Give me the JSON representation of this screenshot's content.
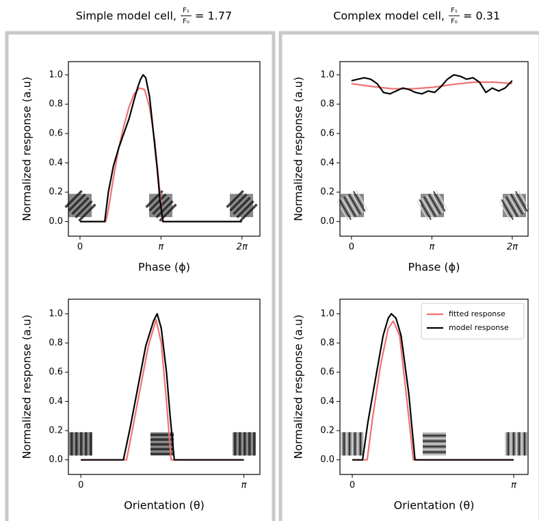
{
  "chart_data": [
    {
      "type": "line",
      "title": "Simple model cell,",
      "numerator": "F₁",
      "denominator": "F₀",
      "ratio": 1.77,
      "ratio_label": "= 1.77",
      "xlabel": "Phase (ϕ)",
      "ylabel": "Normalized response (a.u)",
      "xlim": [
        -0.45,
        6.98
      ],
      "ylim": [
        -0.1,
        1.09
      ],
      "xticks": [
        0,
        {
          "value": 3.1416,
          "label": "π"
        },
        {
          "value": 6.2832,
          "label": "2π"
        }
      ],
      "yticks": [
        {
          "value": 0,
          "label": "0.0"
        },
        {
          "value": 0.2,
          "label": "0.2"
        },
        {
          "value": 0.4,
          "label": "0.4"
        },
        {
          "value": 0.6,
          "label": "0.6"
        },
        {
          "value": 0.8,
          "label": "0.8"
        },
        {
          "value": 1,
          "label": "1.0"
        }
      ],
      "series": [
        {
          "color": "#f07070",
          "x": [
            0,
            1.0,
            1.1,
            1.3,
            1.5,
            1.7,
            1.9,
            2.1,
            2.3,
            2.5,
            2.7,
            2.9,
            3.1,
            3.2,
            6.28
          ],
          "values": [
            0,
            0,
            0.08,
            0.3,
            0.5,
            0.65,
            0.78,
            0.87,
            0.91,
            0.9,
            0.78,
            0.55,
            0.2,
            0,
            0
          ]
        },
        {
          "color": "#000000",
          "x": [
            0,
            0.96,
            1.1,
            1.3,
            1.5,
            1.7,
            1.9,
            2.1,
            2.25,
            2.35,
            2.45,
            2.55,
            2.7,
            2.85,
            3.0,
            3.1,
            3.22,
            4,
            5,
            6.28
          ],
          "values": [
            0,
            0,
            0.2,
            0.38,
            0.5,
            0.6,
            0.7,
            0.83,
            0.92,
            0.97,
            1.0,
            0.98,
            0.85,
            0.6,
            0.35,
            0.15,
            0,
            0,
            0,
            0
          ]
        }
      ]
    },
    {
      "type": "line",
      "title": "Complex model cell,",
      "numerator": "F₁",
      "denominator": "F₀",
      "ratio": 0.31,
      "ratio_label": "= 0.31",
      "xlabel": "Phase (ϕ)",
      "ylabel": "Normalized response (a.u)",
      "xlim": [
        -0.45,
        6.9
      ],
      "ylim": [
        -0.1,
        1.09
      ],
      "xticks": [
        0,
        {
          "value": 3.1416,
          "label": "π"
        },
        {
          "value": 6.2832,
          "label": "2π"
        }
      ],
      "yticks": [
        {
          "value": 0,
          "label": "0.0"
        },
        {
          "value": 0.2,
          "label": "0.2"
        },
        {
          "value": 0.4,
          "label": "0.4"
        },
        {
          "value": 0.6,
          "label": "0.6"
        },
        {
          "value": 0.8,
          "label": "0.8"
        },
        {
          "value": 1,
          "label": "1.0"
        }
      ],
      "series": [
        {
          "color": "#f07070",
          "x": [
            0,
            0.8,
            1.6,
            2.4,
            3.2,
            4.0,
            4.8,
            5.6,
            6.28
          ],
          "values": [
            0.94,
            0.92,
            0.905,
            0.905,
            0.915,
            0.935,
            0.95,
            0.95,
            0.94
          ]
        },
        {
          "color": "#000000",
          "x": [
            0,
            0.25,
            0.5,
            0.75,
            1.0,
            1.25,
            1.5,
            1.75,
            2.0,
            2.25,
            2.5,
            2.75,
            3.0,
            3.25,
            3.5,
            3.75,
            4.0,
            4.25,
            4.5,
            4.75,
            5.0,
            5.25,
            5.5,
            5.75,
            6.0,
            6.28
          ],
          "values": [
            0.96,
            0.97,
            0.98,
            0.97,
            0.94,
            0.88,
            0.87,
            0.89,
            0.91,
            0.9,
            0.88,
            0.87,
            0.89,
            0.88,
            0.92,
            0.97,
            1.0,
            0.99,
            0.97,
            0.98,
            0.95,
            0.88,
            0.91,
            0.89,
            0.91,
            0.96
          ]
        }
      ]
    },
    {
      "type": "line",
      "xlabel": "Orientation (θ)",
      "ylabel": "Normalized response (a.u)",
      "xlim": [
        -0.24,
        3.45
      ],
      "ylim": [
        -0.1,
        1.1
      ],
      "xticks": [
        0,
        {
          "value": 3.1416,
          "label": "π"
        }
      ],
      "yticks": [
        {
          "value": 0,
          "label": "0.0"
        },
        {
          "value": 0.2,
          "label": "0.2"
        },
        {
          "value": 0.4,
          "label": "0.4"
        },
        {
          "value": 0.6,
          "label": "0.6"
        },
        {
          "value": 0.8,
          "label": "0.8"
        },
        {
          "value": 1,
          "label": "1.0"
        }
      ],
      "series": [
        {
          "color": "#f07070",
          "x": [
            0,
            0.88,
            1.0,
            1.15,
            1.3,
            1.45,
            1.55,
            1.65,
            1.74,
            3.14
          ],
          "values": [
            0,
            0,
            0.22,
            0.5,
            0.78,
            0.96,
            0.8,
            0.4,
            0,
            0
          ]
        },
        {
          "color": "#000000",
          "x": [
            0,
            0.82,
            0.95,
            1.1,
            1.25,
            1.4,
            1.47,
            1.55,
            1.65,
            1.72,
            1.8,
            3.14
          ],
          "values": [
            0,
            0,
            0.22,
            0.5,
            0.78,
            0.95,
            1.0,
            0.9,
            0.6,
            0.3,
            0,
            0
          ]
        }
      ]
    },
    {
      "type": "line",
      "xlabel": "Orientation (θ)",
      "ylabel": "Normalized response (a.u)",
      "legend": "upper right",
      "xlim": [
        -0.24,
        3.42
      ],
      "ylim": [
        -0.1,
        1.1
      ],
      "xticks": [
        0,
        {
          "value": 3.1416,
          "label": "π"
        }
      ],
      "yticks": [
        {
          "value": 0,
          "label": "0.0"
        },
        {
          "value": 0.2,
          "label": "0.2"
        },
        {
          "value": 0.4,
          "label": "0.4"
        },
        {
          "value": 0.6,
          "label": "0.6"
        },
        {
          "value": 0.8,
          "label": "0.8"
        },
        {
          "value": 1,
          "label": "1.0"
        }
      ],
      "series": [
        {
          "name": "fitted response",
          "color": "#f07070",
          "x": [
            0,
            0.29,
            0.4,
            0.55,
            0.7,
            0.8,
            0.92,
            1.05,
            1.19,
            3.14
          ],
          "values": [
            0,
            0,
            0.3,
            0.65,
            0.9,
            0.95,
            0.85,
            0.45,
            0,
            0
          ]
        },
        {
          "name": "model response",
          "color": "#000000",
          "x": [
            0,
            0.2,
            0.3,
            0.45,
            0.6,
            0.7,
            0.76,
            0.85,
            0.95,
            1.1,
            1.22,
            3.14
          ],
          "values": [
            0,
            0,
            0.25,
            0.55,
            0.85,
            0.97,
            1.0,
            0.97,
            0.85,
            0.45,
            0,
            0
          ]
        }
      ]
    }
  ]
}
